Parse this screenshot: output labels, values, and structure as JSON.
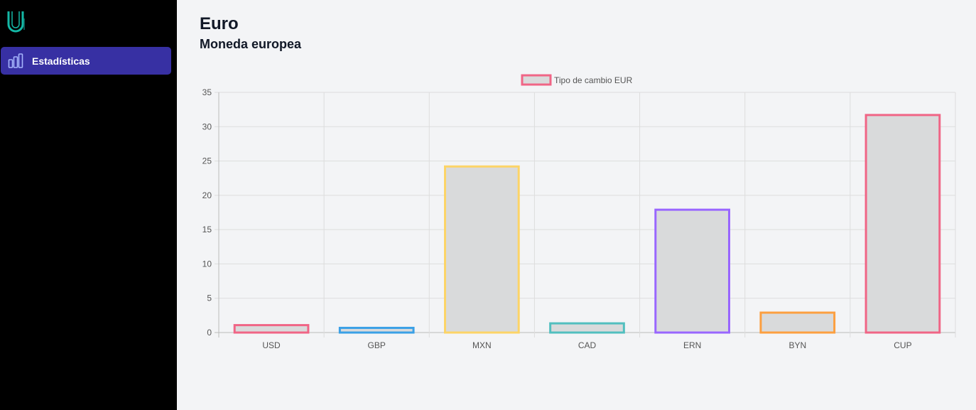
{
  "sidebar": {
    "logo_icon": "brand-logo-icon",
    "items": [
      {
        "label": "Estadísticas",
        "icon": "bar-chart-icon",
        "active": true
      }
    ],
    "accent": "#3730a3",
    "logo_color": "#14b8a6"
  },
  "header": {
    "title": "Euro",
    "subtitle": "Moneda europea"
  },
  "chart_data": {
    "type": "bar",
    "title": "",
    "xlabel": "",
    "ylabel": "",
    "legend": {
      "label": "Tipo de cambio EUR",
      "position": "top-center"
    },
    "categories": [
      "USD",
      "GBP",
      "MXN",
      "CAD",
      "ERN",
      "BYN",
      "CUP"
    ],
    "series": [
      {
        "name": "Tipo de cambio EUR",
        "values": [
          1.08,
          0.68,
          24.2,
          1.34,
          17.9,
          2.9,
          31.7
        ],
        "fill": "#d9dadb",
        "borders": [
          "#f06586",
          "#3aa0e6",
          "#fcd467",
          "#52bfbf",
          "#9966ff",
          "#fc9f40",
          "#f06586"
        ]
      }
    ],
    "ylim": [
      0,
      35
    ],
    "yticks": [
      0,
      5,
      10,
      15,
      20,
      25,
      30,
      35
    ],
    "grid": true
  }
}
